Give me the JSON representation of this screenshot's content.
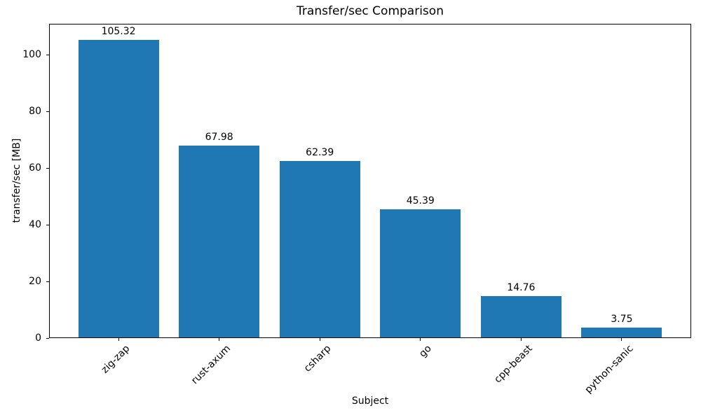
{
  "chart_data": {
    "type": "bar",
    "title": "Transfer/sec Comparison",
    "xlabel": "Subject",
    "ylabel": "transfer/sec [MB]",
    "categories": [
      "zig-zap",
      "rust-axum",
      "csharp",
      "go",
      "cpp-beast",
      "python-sanic"
    ],
    "values": [
      105.32,
      67.98,
      62.39,
      45.39,
      14.76,
      3.75
    ],
    "value_labels": [
      "105.32",
      "67.98",
      "62.39",
      "45.39",
      "14.76",
      "3.75"
    ],
    "yticks": [
      "0",
      "20",
      "40",
      "60",
      "80",
      "100"
    ],
    "ytick_values": [
      0,
      20,
      40,
      60,
      80,
      100
    ],
    "ylim": [
      0,
      110.9
    ],
    "bar_color": "#1f77b4",
    "axis_color": "#000000",
    "grid": false,
    "legend": "none",
    "x_tick_rotation_deg": 45
  }
}
